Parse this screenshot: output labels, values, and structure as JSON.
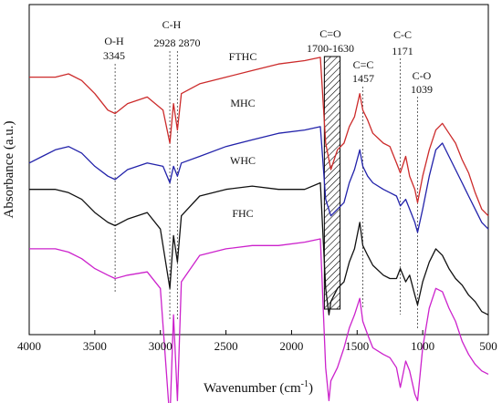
{
  "chart_data": {
    "type": "line",
    "title": "",
    "xlabel": "Wavenumber (cm",
    "xlabel_sup": "-1",
    "xlabel_tail": ")",
    "ylabel": "Absorbance (a.u.)",
    "xlim": [
      4000,
      500
    ],
    "x_ticks": [
      "4000",
      "3500",
      "3000",
      "2500",
      "2000",
      "1500",
      "1000",
      "500"
    ],
    "x_tick_values": [
      4000,
      3500,
      3000,
      2500,
      2000,
      1500,
      1000,
      500
    ],
    "y_ticks_shown": false,
    "grid": false,
    "legend": "inline labels",
    "series": [
      {
        "name": "FTHC",
        "color": "#cc2b2b",
        "offset": 0.78,
        "points": [
          [
            4000,
            0.0
          ],
          [
            3800,
            0.0
          ],
          [
            3700,
            0.01
          ],
          [
            3600,
            -0.01
          ],
          [
            3500,
            -0.05
          ],
          [
            3400,
            -0.1
          ],
          [
            3345,
            -0.11
          ],
          [
            3250,
            -0.08
          ],
          [
            3100,
            -0.06
          ],
          [
            2980,
            -0.1
          ],
          [
            2928,
            -0.2
          ],
          [
            2900,
            -0.08
          ],
          [
            2870,
            -0.16
          ],
          [
            2840,
            -0.05
          ],
          [
            2700,
            -0.02
          ],
          [
            2500,
            0.0
          ],
          [
            2300,
            0.02
          ],
          [
            2100,
            0.04
          ],
          [
            1900,
            0.05
          ],
          [
            1780,
            0.06
          ],
          [
            1740,
            -0.2
          ],
          [
            1700,
            -0.28
          ],
          [
            1650,
            -0.22
          ],
          [
            1600,
            -0.2
          ],
          [
            1560,
            -0.15
          ],
          [
            1520,
            -0.12
          ],
          [
            1480,
            -0.05
          ],
          [
            1457,
            -0.1
          ],
          [
            1420,
            -0.13
          ],
          [
            1380,
            -0.17
          ],
          [
            1300,
            -0.2
          ],
          [
            1250,
            -0.21
          ],
          [
            1200,
            -0.26
          ],
          [
            1171,
            -0.29
          ],
          [
            1130,
            -0.24
          ],
          [
            1100,
            -0.3
          ],
          [
            1060,
            -0.34
          ],
          [
            1039,
            -0.38
          ],
          [
            1000,
            -0.3
          ],
          [
            950,
            -0.22
          ],
          [
            900,
            -0.16
          ],
          [
            850,
            -0.14
          ],
          [
            800,
            -0.17
          ],
          [
            750,
            -0.2
          ],
          [
            700,
            -0.25
          ],
          [
            650,
            -0.29
          ],
          [
            600,
            -0.35
          ],
          [
            550,
            -0.4
          ],
          [
            500,
            -0.42
          ]
        ]
      },
      {
        "name": "MHC",
        "color": "#2222aa",
        "offset": 0.56,
        "points": [
          [
            4000,
            -0.04
          ],
          [
            3900,
            -0.02
          ],
          [
            3800,
            0.0
          ],
          [
            3700,
            0.01
          ],
          [
            3600,
            -0.01
          ],
          [
            3500,
            -0.05
          ],
          [
            3400,
            -0.08
          ],
          [
            3345,
            -0.09
          ],
          [
            3250,
            -0.06
          ],
          [
            3100,
            -0.04
          ],
          [
            2980,
            -0.05
          ],
          [
            2928,
            -0.1
          ],
          [
            2900,
            -0.05
          ],
          [
            2870,
            -0.08
          ],
          [
            2840,
            -0.04
          ],
          [
            2700,
            -0.02
          ],
          [
            2500,
            0.01
          ],
          [
            2300,
            0.03
          ],
          [
            2100,
            0.05
          ],
          [
            1900,
            0.06
          ],
          [
            1780,
            0.07
          ],
          [
            1740,
            -0.15
          ],
          [
            1700,
            -0.2
          ],
          [
            1650,
            -0.18
          ],
          [
            1600,
            -0.16
          ],
          [
            1560,
            -0.1
          ],
          [
            1520,
            -0.06
          ],
          [
            1480,
            0.0
          ],
          [
            1457,
            -0.05
          ],
          [
            1420,
            -0.08
          ],
          [
            1380,
            -0.1
          ],
          [
            1300,
            -0.12
          ],
          [
            1250,
            -0.13
          ],
          [
            1200,
            -0.14
          ],
          [
            1171,
            -0.17
          ],
          [
            1130,
            -0.15
          ],
          [
            1100,
            -0.18
          ],
          [
            1060,
            -0.22
          ],
          [
            1039,
            -0.25
          ],
          [
            1000,
            -0.18
          ],
          [
            950,
            -0.08
          ],
          [
            900,
            0.0
          ],
          [
            850,
            0.02
          ],
          [
            800,
            -0.02
          ],
          [
            750,
            -0.06
          ],
          [
            700,
            -0.1
          ],
          [
            650,
            -0.14
          ],
          [
            600,
            -0.18
          ],
          [
            550,
            -0.22
          ],
          [
            500,
            -0.24
          ]
        ]
      },
      {
        "name": "WHC",
        "color": "#111111",
        "offset": 0.44,
        "points": [
          [
            4000,
            0.0
          ],
          [
            3800,
            0.0
          ],
          [
            3700,
            -0.01
          ],
          [
            3600,
            -0.03
          ],
          [
            3500,
            -0.07
          ],
          [
            3400,
            -0.1
          ],
          [
            3345,
            -0.11
          ],
          [
            3250,
            -0.09
          ],
          [
            3100,
            -0.07
          ],
          [
            3000,
            -0.12
          ],
          [
            2928,
            -0.3
          ],
          [
            2900,
            -0.14
          ],
          [
            2870,
            -0.22
          ],
          [
            2840,
            -0.08
          ],
          [
            2700,
            -0.02
          ],
          [
            2500,
            0.0
          ],
          [
            2300,
            0.01
          ],
          [
            2100,
            0.0
          ],
          [
            1900,
            0.0
          ],
          [
            1780,
            0.02
          ],
          [
            1740,
            -0.3
          ],
          [
            1715,
            -0.38
          ],
          [
            1700,
            -0.34
          ],
          [
            1650,
            -0.3
          ],
          [
            1600,
            -0.28
          ],
          [
            1560,
            -0.22
          ],
          [
            1520,
            -0.18
          ],
          [
            1480,
            -0.1
          ],
          [
            1457,
            -0.17
          ],
          [
            1420,
            -0.2
          ],
          [
            1380,
            -0.23
          ],
          [
            1300,
            -0.26
          ],
          [
            1250,
            -0.27
          ],
          [
            1200,
            -0.27
          ],
          [
            1171,
            -0.24
          ],
          [
            1130,
            -0.28
          ],
          [
            1100,
            -0.26
          ],
          [
            1060,
            -0.32
          ],
          [
            1039,
            -0.35
          ],
          [
            1000,
            -0.28
          ],
          [
            950,
            -0.22
          ],
          [
            900,
            -0.18
          ],
          [
            850,
            -0.2
          ],
          [
            800,
            -0.24
          ],
          [
            750,
            -0.27
          ],
          [
            700,
            -0.29
          ],
          [
            650,
            -0.32
          ],
          [
            600,
            -0.34
          ],
          [
            550,
            -0.37
          ],
          [
            500,
            -0.38
          ]
        ]
      },
      {
        "name": "FHC",
        "color": "#cc22cc",
        "offset": 0.26,
        "points": [
          [
            4000,
            0.0
          ],
          [
            3800,
            0.0
          ],
          [
            3700,
            -0.01
          ],
          [
            3600,
            -0.03
          ],
          [
            3500,
            -0.06
          ],
          [
            3400,
            -0.08
          ],
          [
            3345,
            -0.09
          ],
          [
            3250,
            -0.08
          ],
          [
            3100,
            -0.07
          ],
          [
            3000,
            -0.12
          ],
          [
            2928,
            -0.52
          ],
          [
            2900,
            -0.2
          ],
          [
            2870,
            -0.46
          ],
          [
            2840,
            -0.1
          ],
          [
            2700,
            -0.02
          ],
          [
            2500,
            0.0
          ],
          [
            2300,
            0.01
          ],
          [
            2100,
            0.01
          ],
          [
            1900,
            0.02
          ],
          [
            1780,
            0.03
          ],
          [
            1740,
            -0.36
          ],
          [
            1715,
            -0.46
          ],
          [
            1700,
            -0.4
          ],
          [
            1650,
            -0.36
          ],
          [
            1600,
            -0.3
          ],
          [
            1560,
            -0.24
          ],
          [
            1520,
            -0.2
          ],
          [
            1480,
            -0.15
          ],
          [
            1457,
            -0.22
          ],
          [
            1420,
            -0.26
          ],
          [
            1380,
            -0.3
          ],
          [
            1300,
            -0.32
          ],
          [
            1250,
            -0.33
          ],
          [
            1200,
            -0.36
          ],
          [
            1171,
            -0.42
          ],
          [
            1130,
            -0.34
          ],
          [
            1100,
            -0.37
          ],
          [
            1060,
            -0.44
          ],
          [
            1039,
            -0.46
          ],
          [
            1000,
            -0.3
          ],
          [
            950,
            -0.18
          ],
          [
            900,
            -0.12
          ],
          [
            850,
            -0.13
          ],
          [
            800,
            -0.18
          ],
          [
            750,
            -0.22
          ],
          [
            700,
            -0.28
          ],
          [
            650,
            -0.32
          ],
          [
            600,
            -0.35
          ],
          [
            550,
            -0.37
          ],
          [
            500,
            -0.38
          ]
        ]
      }
    ],
    "bands": [
      {
        "label": "O-H",
        "sub": "3345",
        "x": 3345
      },
      {
        "label": "C-H",
        "sub": "2928  2870",
        "x": [
          2928,
          2870
        ]
      },
      {
        "label": "C=O",
        "sub": "1700-1630",
        "x_range": [
          1750,
          1630
        ]
      },
      {
        "label": "C=C",
        "sub": "1457",
        "x": 1457
      },
      {
        "label": "C-C",
        "sub": "1171",
        "x": 1171
      },
      {
        "label": "C-O",
        "sub": "1039",
        "x": 1039
      }
    ]
  }
}
